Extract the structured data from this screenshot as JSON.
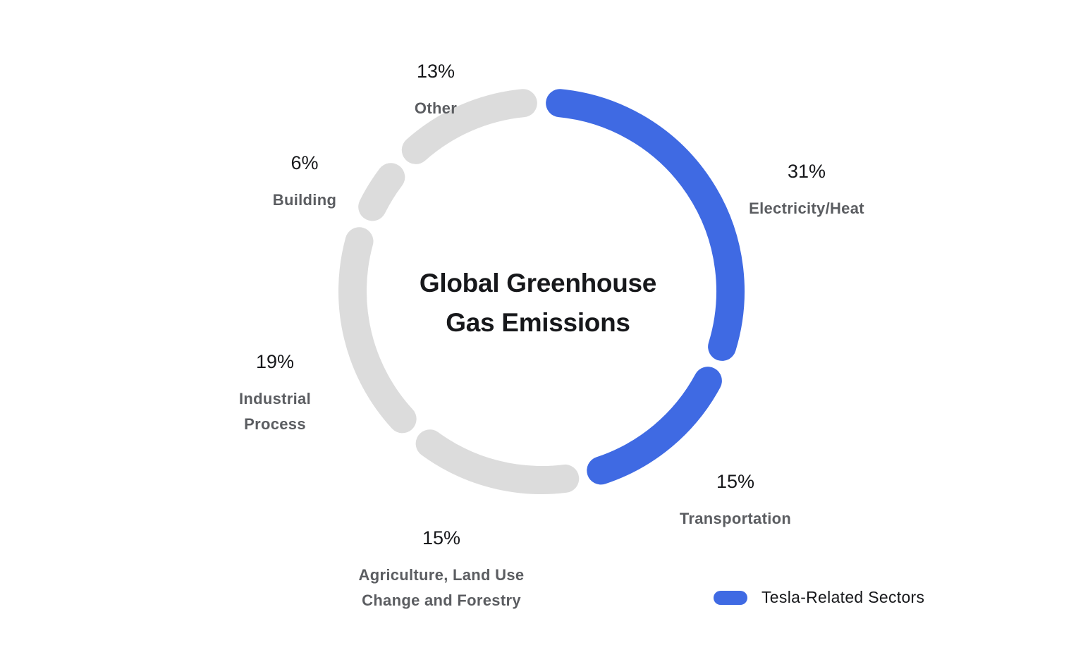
{
  "chart_data": {
    "type": "pie",
    "variant": "donut",
    "title": "Global Greenhouse\nGas Emissions",
    "slices": [
      {
        "label": "Electricity/Heat",
        "value": 31,
        "value_label": "31%",
        "highlight": true
      },
      {
        "label": "Transportation",
        "value": 15,
        "value_label": "15%",
        "highlight": true
      },
      {
        "label": "Agriculture, Land Use\nChange and Forestry",
        "value": 15,
        "value_label": "15%",
        "highlight": false
      },
      {
        "label": "Industrial\nProcess",
        "value": 19,
        "value_label": "19%",
        "highlight": false
      },
      {
        "label": "Building",
        "value": 6,
        "value_label": "6%",
        "highlight": false
      },
      {
        "label": "Other",
        "value": 13,
        "value_label": "13%",
        "highlight": false
      }
    ],
    "colors": {
      "highlight": "#3f6ae3",
      "default": "#dcdcdc"
    },
    "legend": {
      "label": "Tesla-Related Sectors",
      "color": "#3f6ae3",
      "placement": "bottom-right"
    }
  }
}
